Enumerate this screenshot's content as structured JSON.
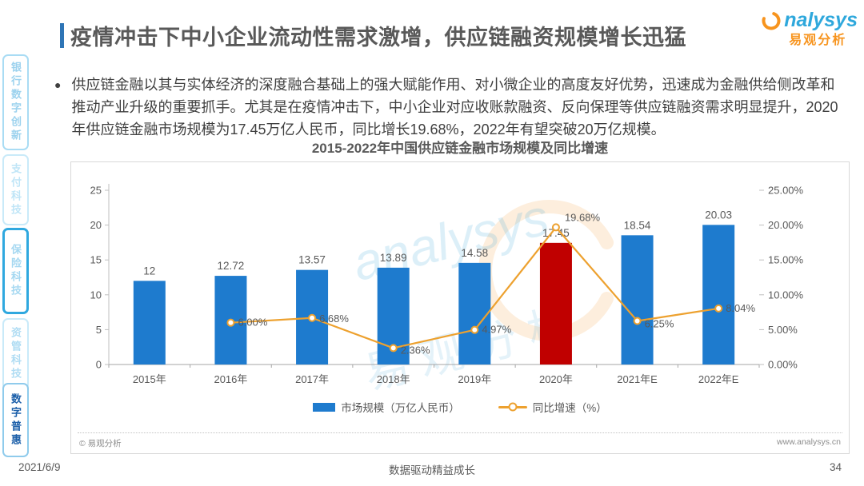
{
  "theme": {
    "accent_blue": "#2E75B6",
    "logo_blue": "#2FA8DC",
    "logo_orange": "#F7941E"
  },
  "header": {
    "title": "疫情冲击下中小企业流动性需求激增，供应链融资规模增长迅猛",
    "logo": {
      "brand": "nalysys",
      "brand_cn": "易观分析"
    }
  },
  "sidebar": {
    "items": [
      {
        "label": "银行数字创新",
        "state": "normal"
      },
      {
        "label": "支付科技",
        "state": "faint"
      },
      {
        "label": "保险科技",
        "state": "highlight"
      },
      {
        "label": "资管科技",
        "state": "light"
      },
      {
        "label": "数字普惠",
        "state": "active"
      }
    ]
  },
  "content": {
    "bullet_marker": "●",
    "bullet_text": "供应链金融以其与实体经济的深度融合基础上的强大赋能作用、对小微企业的高度友好优势，迅速成为金融供给侧改革和推动产业升级的重要抓手。尤其是在疫情冲击下，中小企业对应收账款融资、反向保理等供应链融资需求明显提升，2020年供应链金融市场规模为17.45万亿人民币，同比增长19.68%，2022年有望突破20万亿规模。"
  },
  "chart_data": {
    "type": "bar+line",
    "title": "2015-2022年中国供应链金融市场规模及同比增速",
    "categories": [
      "2015年",
      "2016年",
      "2017年",
      "2018年",
      "2019年",
      "2020年",
      "2021年E",
      "2022年E"
    ],
    "series": [
      {
        "name": "市场规模（万亿人民币）",
        "type": "bar",
        "axis": "left",
        "values": [
          12,
          12.72,
          13.57,
          13.89,
          14.58,
          17.45,
          18.54,
          20.03
        ],
        "labels": [
          "12",
          "12.72",
          "13.57",
          "13.89",
          "14.58",
          "17.45",
          "18.54",
          "20.03"
        ]
      },
      {
        "name": "同比增速（%）",
        "type": "line",
        "axis": "right",
        "values": [
          null,
          6.0,
          6.68,
          2.36,
          4.97,
          19.68,
          6.25,
          8.04
        ],
        "labels": [
          "",
          "6.00%",
          "6.68%",
          "2.36%",
          "4.97%",
          "19.68%",
          "6.25%",
          "8.04%"
        ]
      }
    ],
    "left_axis": {
      "ticks": [
        0,
        5,
        10,
        15,
        20,
        25
      ],
      "max": 25
    },
    "right_axis": {
      "ticks": [
        "0.00%",
        "5.00%",
        "10.00%",
        "15.00%",
        "20.00%",
        "25.00%"
      ],
      "max": 25
    },
    "highlight_index": 5,
    "colors": {
      "bar": "#1E7BCE",
      "bar_highlight": "#C00000",
      "line": "#EDA12F",
      "marker_fill": "#FFFFFF"
    },
    "legend_position": "bottom",
    "grid": false
  },
  "chart_footer": {
    "copyright": "© 易观分析",
    "website": "www.analysys.cn"
  },
  "watermark": {
    "text": "analysys",
    "text_cn": "易观分析"
  },
  "footer": {
    "date": "2021/6/9",
    "slogan": "数据驱动精益成长",
    "page": "34"
  }
}
